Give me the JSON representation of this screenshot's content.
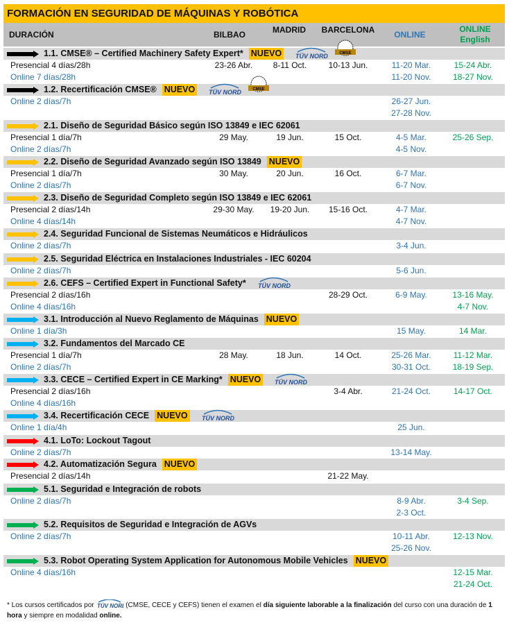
{
  "title": "FORMACIÓN EN SEGURIDAD DE MÁQUINAS Y ROBÓTICA",
  "header": {
    "duracion": "DURACIÓN",
    "bilbao": "BILBAO",
    "madrid": "MADRID",
    "barcelona": "BARCELONA",
    "online": "ONLINE",
    "online_english_1": "ONLINE",
    "online_english_2": "English"
  },
  "logo_text": "TÜV NORD",
  "seal_text": "CMSE",
  "colors": {
    "title_bg": "#FFC000",
    "header_bg": "#BFBFBF",
    "section_bg": "#D9D9D9",
    "online_blue": "#2E74B5",
    "english_green": "#00A050",
    "arrow_black": "#000000",
    "arrow_yellow": "#FFC000",
    "arrow_blue": "#00B0F0",
    "arrow_red": "#FF0000",
    "arrow_green": "#00B050"
  },
  "nuevo_label": "NUEVO",
  "sections": [
    {
      "title": "1.1. CMSE® – Certified Machinery Safety Expert*",
      "arrow": "black",
      "nuevo": true,
      "tuv": true,
      "seal": true,
      "rows": [
        {
          "dur": "Presencial 4 días/28h",
          "bilbao": "23-26 Abr.",
          "madrid": "8-11 Oct.",
          "barcelona": "10-13 Jun.",
          "online": [
            "11-20 Mar."
          ],
          "english": [
            "15-24 Abr."
          ]
        },
        {
          "dur": "Online 7 días/28h",
          "online": [
            "11-20 Nov."
          ],
          "english": [
            "18-27 Nov."
          ]
        }
      ]
    },
    {
      "title": "1.2. Recertificación CMSE®",
      "arrow": "black",
      "nuevo": true,
      "tuv": true,
      "seal": true,
      "rows": [
        {
          "dur": "Online 2 días/7h",
          "online": [
            "26-27 Jun.",
            "27-28 Nov."
          ]
        }
      ]
    },
    {
      "title": "2.1. Diseño de Seguridad Básico según ISO 13849 e IEC 62061",
      "arrow": "yellow",
      "rows": [
        {
          "dur": "Presencial 1 día/7h",
          "bilbao": "29 May.",
          "madrid": "19 Jun.",
          "barcelona": "15 Oct.",
          "online": [
            "4-5 Mar."
          ],
          "english": [
            "25-26 Sep."
          ]
        },
        {
          "dur": "Online 2 días/7h",
          "online": [
            "4-5 Nov."
          ]
        }
      ]
    },
    {
      "title": "2.2. Diseño de Seguridad Avanzado según ISO 13849",
      "arrow": "yellow",
      "nuevo": true,
      "rows": [
        {
          "dur": "Presencial 1 día/7h",
          "bilbao": "30 May.",
          "madrid": "20 Jun.",
          "barcelona": "16 Oct.",
          "online": [
            "6-7 Mar."
          ]
        },
        {
          "dur": "Online 2 días/7h",
          "online": [
            "6-7 Nov."
          ]
        }
      ]
    },
    {
      "title": "2.3. Diseño de Seguridad Completo según ISO 13849 e IEC 62061",
      "arrow": "yellow",
      "rows": [
        {
          "dur": "Presencial 2 días/14h",
          "bilbao": "29-30 May.",
          "madrid": "19-20 Jun.",
          "barcelona": "15-16 Oct.",
          "online": [
            "4-7 Mar."
          ]
        },
        {
          "dur": "Online 4 días/14h",
          "online": [
            "4-7 Nov."
          ]
        }
      ]
    },
    {
      "title": "2.4. Seguridad Funcional de Sistemas Neumáticos e Hidráulicos",
      "arrow": "yellow",
      "rows": [
        {
          "dur": "Online 2 días/7h",
          "online": [
            "3-4 Jun."
          ]
        }
      ]
    },
    {
      "title": "2.5. Seguridad Eléctrica en Instalaciones Industriales - IEC 60204",
      "arrow": "yellow",
      "rows": [
        {
          "dur": "Online 2 días/7h",
          "online": [
            "5-6 Jun."
          ]
        }
      ]
    },
    {
      "title": "2.6. CEFS – Certified Expert in Functional Safety*",
      "arrow": "yellow",
      "tuv": true,
      "rows": [
        {
          "dur": "Presencial 2 días/16h",
          "barcelona": "28-29 Oct.",
          "online": [
            "6-9 May."
          ],
          "english": [
            "13-16 May."
          ]
        },
        {
          "dur": "Online 4 días/16h",
          "english": [
            "4-7 Nov."
          ]
        }
      ]
    },
    {
      "title": "3.1. Introducción al Nuevo Reglamento de Máquinas",
      "arrow": "blue",
      "nuevo": true,
      "rows": [
        {
          "dur": "Online 1 día/3h",
          "online": [
            "15 May."
          ],
          "english": [
            "14 Mar."
          ]
        }
      ]
    },
    {
      "title": "3.2. Fundamentos del Marcado CE",
      "arrow": "blue",
      "rows": [
        {
          "dur": "Presencial 1 día/7h",
          "bilbao": "28 May.",
          "madrid": "18 Jun.",
          "barcelona": "14 Oct.",
          "online": [
            "25-26 Mar."
          ],
          "english": [
            "11-12 Mar."
          ]
        },
        {
          "dur": "Online 2 días/7h",
          "online": [
            "30-31 Oct."
          ],
          "english": [
            "18-19 Sep."
          ]
        }
      ]
    },
    {
      "title": "3.3. CECE – Certified Expert in CE Marking*",
      "arrow": "blue",
      "nuevo": true,
      "tuv": true,
      "rows": [
        {
          "dur": "Presencial 2 días/16h",
          "barcelona": "3-4 Abr.",
          "online": [
            "21-24 Oct."
          ],
          "english": [
            "14-17 Oct."
          ]
        },
        {
          "dur": "Online 4 días/16h"
        }
      ]
    },
    {
      "title": "3.4. Recertificación CECE",
      "arrow": "blue",
      "nuevo": true,
      "tuv": true,
      "rows": [
        {
          "dur": "Online 1 día/4h",
          "online": [
            "25 Jun."
          ]
        }
      ]
    },
    {
      "title": "4.1. LoTo: Lockout Tagout",
      "arrow": "red",
      "rows": [
        {
          "dur": "Online 2 días/7h",
          "online": [
            "13-14 May."
          ]
        }
      ]
    },
    {
      "title": "4.2. Automatización Segura",
      "arrow": "red",
      "nuevo": true,
      "rows": [
        {
          "dur": "Presencial 2 días/14h",
          "barcelona": "21-22 May."
        }
      ]
    },
    {
      "title": "5.1. Seguridad e Integración de robots",
      "arrow": "green",
      "rows": [
        {
          "dur": "Online 2 días/7h",
          "online": [
            "8-9 Abr.",
            "2-3 Oct."
          ],
          "english": [
            "3-4 Sep."
          ]
        }
      ]
    },
    {
      "title": "5.2. Requisitos de Seguridad e Integración de AGVs",
      "arrow": "green",
      "rows": [
        {
          "dur": "Online 2 días/7h",
          "online": [
            "10-11 Abr.",
            "25-26 Nov."
          ],
          "english": [
            "12-13 Nov."
          ]
        }
      ]
    },
    {
      "title": "5.3. Robot Operating System Application for Autonomous Mobile Vehicles",
      "arrow": "green",
      "nuevo": true,
      "rows": [
        {
          "dur": "Online 4 días/16h",
          "english": [
            "12-15 Mar.",
            "21-24 Oct."
          ]
        }
      ]
    }
  ],
  "footnote": {
    "part1": "* Los cursos certificados por",
    "part2": "(CMSE, CECE y CEFS) tienen el examen el",
    "bold1": "día siguiente laborable a la finalización",
    "part3": "del curso con una duración de",
    "bold2": "1 hora",
    "part4": "y siempre en modalidad",
    "bold3": "online."
  }
}
